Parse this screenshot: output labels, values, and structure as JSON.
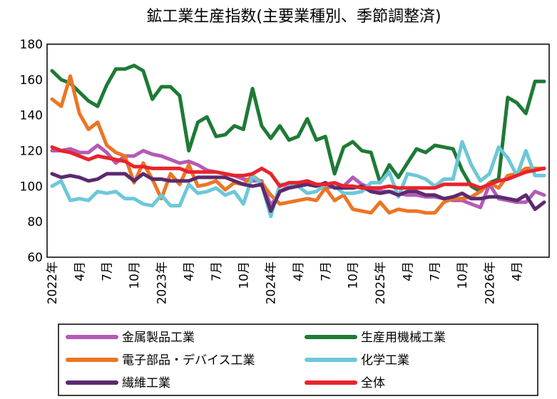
{
  "chart_data": {
    "type": "line",
    "title": "鉱工業生産指数(主要業種別、季節調整済)",
    "xlabel": "",
    "ylabel": "",
    "ylim": [
      60,
      180
    ],
    "yticks": [
      60,
      80,
      100,
      120,
      140,
      160,
      180
    ],
    "grid": false,
    "legend_position": "bottom",
    "x_tick_labels": [
      {
        "i": 0,
        "label": "2022年"
      },
      {
        "i": 3,
        "label": "4月"
      },
      {
        "i": 6,
        "label": "7月"
      },
      {
        "i": 9,
        "label": "10月"
      },
      {
        "i": 12,
        "label": "2023年"
      },
      {
        "i": 15,
        "label": "4月"
      },
      {
        "i": 18,
        "label": "7月"
      },
      {
        "i": 21,
        "label": "10月"
      },
      {
        "i": 24,
        "label": "2024年"
      },
      {
        "i": 27,
        "label": "4月"
      },
      {
        "i": 30,
        "label": "7月"
      },
      {
        "i": 33,
        "label": "10月"
      },
      {
        "i": 36,
        "label": "2025年"
      },
      {
        "i": 39,
        "label": "4月"
      },
      {
        "i": 42,
        "label": "7月"
      },
      {
        "i": 45,
        "label": "10月"
      },
      {
        "i": 48,
        "label": "2026年"
      },
      {
        "i": 51,
        "label": "4月"
      }
    ],
    "series": [
      {
        "name": "金属製品工業",
        "color": "#b45bb5",
        "values": [
          120,
          120,
          121,
          119,
          119,
          123,
          119,
          113,
          117,
          117,
          120,
          118,
          117,
          115,
          113,
          114,
          112,
          109,
          108,
          107,
          106,
          104,
          103,
          103,
          89,
          97,
          100,
          101,
          103,
          101,
          99,
          100,
          100,
          105,
          101,
          99,
          97,
          97,
          96,
          95,
          95,
          94,
          94,
          93,
          92,
          92,
          90,
          88,
          101,
          93,
          92,
          91,
          91,
          97,
          95
        ]
      },
      {
        "name": "生産用機械工業",
        "color": "#1e7a35",
        "values": [
          165,
          160,
          158,
          153,
          148,
          145,
          157,
          166,
          166,
          168,
          165,
          149,
          156,
          156,
          151,
          120,
          136,
          139,
          128,
          129,
          134,
          132,
          155,
          134,
          127,
          134,
          126,
          128,
          138,
          126,
          128,
          107,
          122,
          125,
          120,
          119,
          102,
          112,
          105,
          113,
          121,
          119,
          123,
          122,
          121,
          109,
          100,
          97,
          102,
          104,
          150,
          147,
          141,
          159,
          159
        ]
      },
      {
        "name": "電子部品・デバイス工業",
        "color": "#ec7524",
        "values": [
          149,
          145,
          162,
          141,
          132,
          136,
          123,
          119,
          117,
          102,
          113,
          104,
          93,
          107,
          101,
          112,
          100,
          101,
          103,
          98,
          102,
          101,
          106,
          102,
          95,
          90,
          91,
          92,
          93,
          92,
          99,
          92,
          95,
          87,
          86,
          85,
          91,
          85,
          87,
          86,
          86,
          85,
          85,
          91,
          93,
          93,
          94,
          97,
          102,
          99,
          106,
          107,
          110,
          110,
          110
        ]
      },
      {
        "name": "化学工業",
        "color": "#6cc8d8",
        "values": [
          100,
          103,
          92,
          93,
          92,
          97,
          96,
          97,
          93,
          93,
          90,
          89,
          95,
          89,
          89,
          101,
          96,
          97,
          99,
          95,
          97,
          90,
          106,
          101,
          83,
          101,
          101,
          100,
          96,
          97,
          101,
          100,
          96,
          96,
          97,
          102,
          102,
          108,
          94,
          107,
          106,
          104,
          100,
          104,
          104,
          125,
          112,
          103,
          107,
          122,
          116,
          106,
          120,
          106,
          106
        ]
      },
      {
        "name": "繊維工業",
        "color": "#5b2a6e",
        "values": [
          107,
          105,
          106,
          105,
          103,
          104,
          107,
          107,
          107,
          103,
          107,
          104,
          104,
          103,
          103,
          103,
          105,
          105,
          105,
          105,
          103,
          101,
          100,
          101,
          86,
          97,
          99,
          100,
          101,
          100,
          102,
          99,
          99,
          99,
          100,
          97,
          96,
          97,
          95,
          97,
          97,
          95,
          95,
          93,
          94,
          96,
          93,
          93,
          94,
          94,
          93,
          92,
          95,
          87,
          91
        ]
      },
      {
        "name": "全体",
        "color": "#e8242b",
        "values": [
          122,
          120,
          119,
          117,
          115,
          117,
          116,
          115,
          114,
          111,
          111,
          110,
          110,
          110,
          110,
          108,
          108,
          108,
          108,
          107,
          106,
          106,
          107,
          110,
          107,
          100,
          102,
          102,
          103,
          101,
          101,
          102,
          100,
          100,
          99,
          99,
          99,
          100,
          99,
          99,
          99,
          99,
          99,
          101,
          101,
          101,
          101,
          99,
          101,
          103,
          104,
          106,
          108,
          109,
          110
        ]
      }
    ]
  }
}
